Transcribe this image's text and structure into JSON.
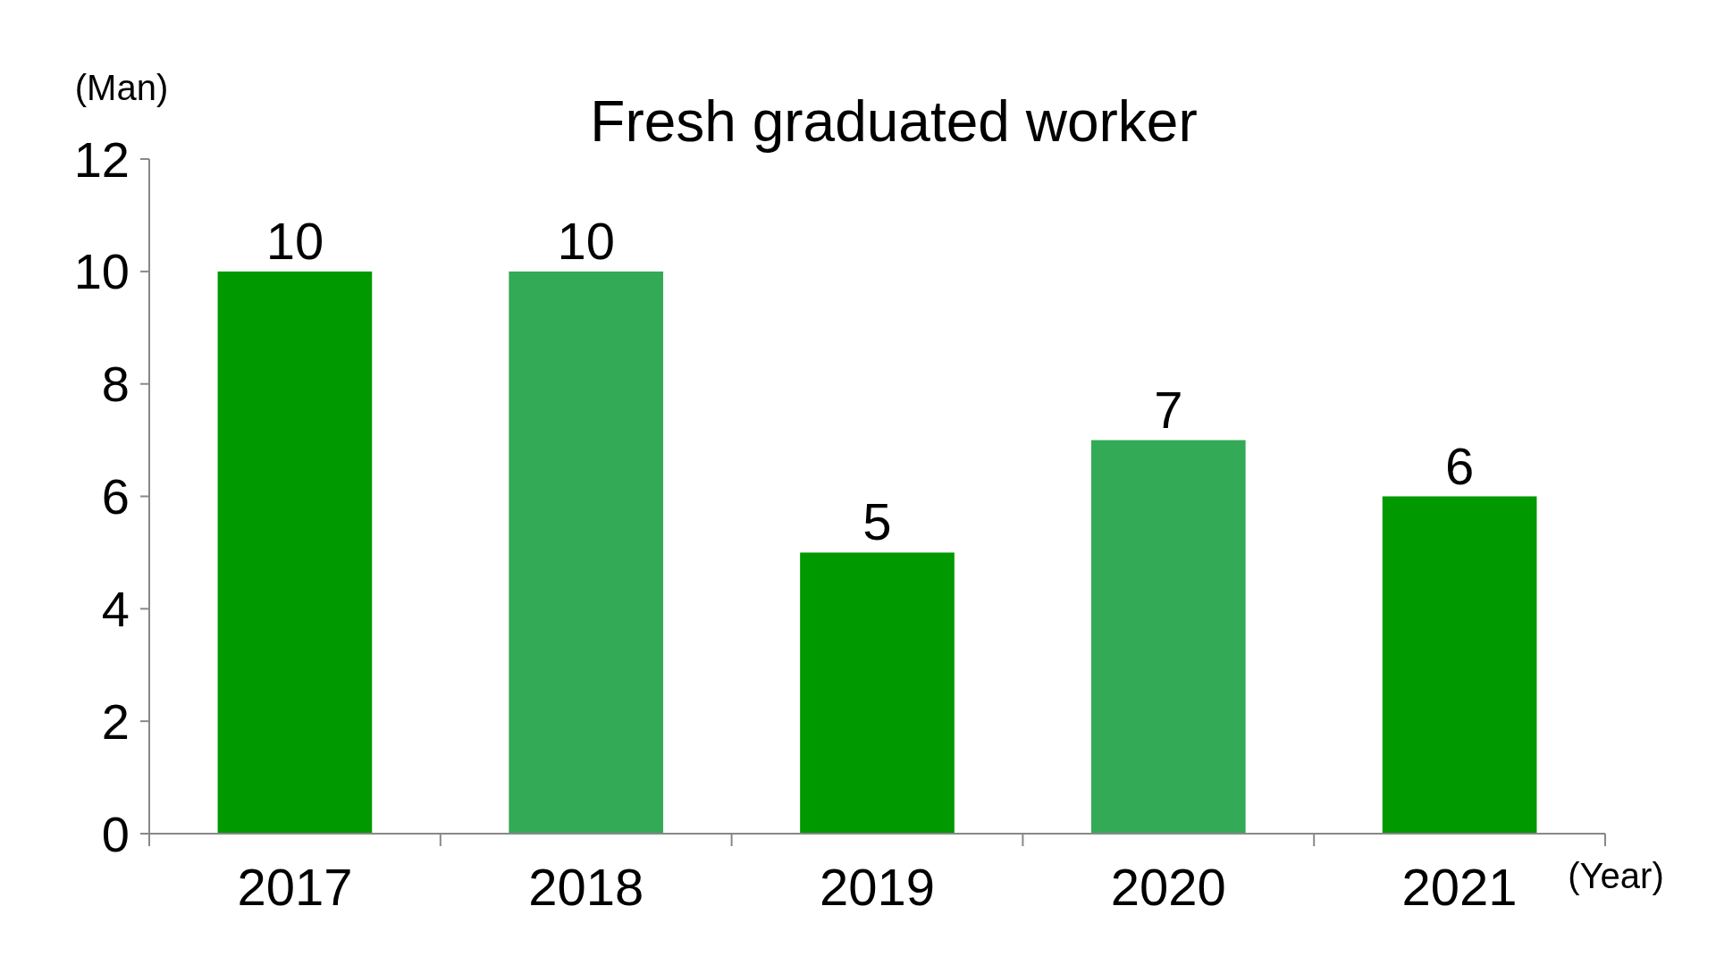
{
  "chart_data": {
    "type": "bar",
    "title": "Fresh graduated worker",
    "ylabel": "(Man)",
    "xlabel": "(Year)",
    "categories": [
      "2017",
      "2018",
      "2019",
      "2020",
      "2021"
    ],
    "values": [
      10,
      10,
      5,
      7,
      6
    ],
    "colors": [
      "#009900",
      "#33aa55",
      "#009900",
      "#33aa55",
      "#009900"
    ],
    "ylim": [
      0,
      12
    ],
    "yticks": [
      0,
      2,
      4,
      6,
      8,
      10,
      12
    ],
    "grid": false,
    "data_labels": true
  }
}
